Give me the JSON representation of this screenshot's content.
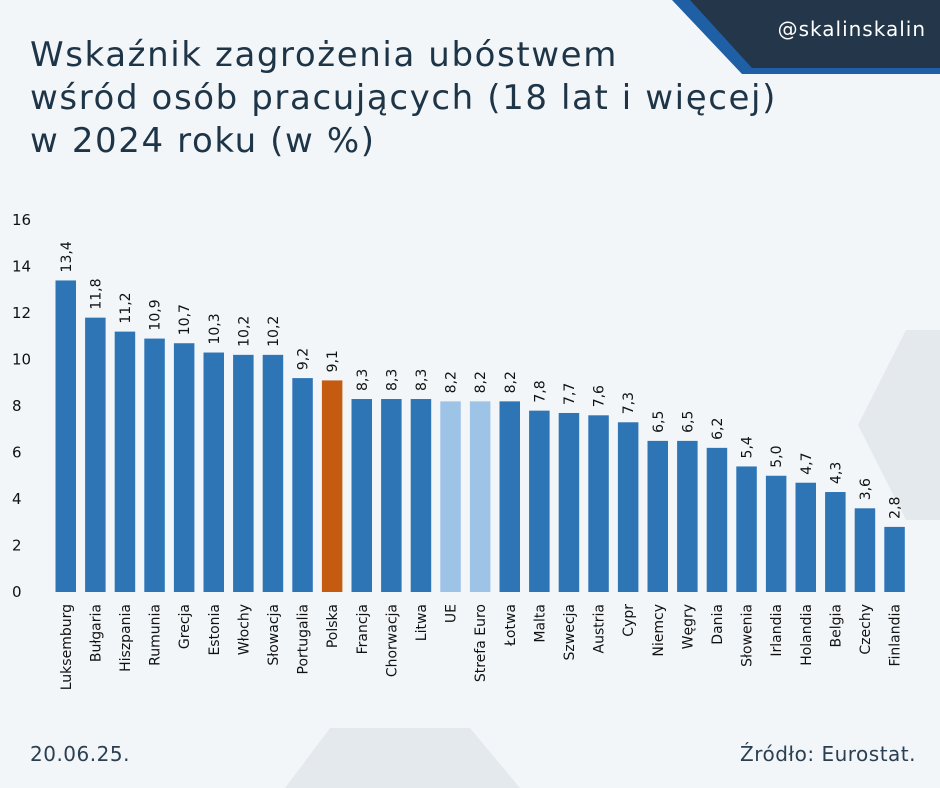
{
  "header": {
    "handle": "@skalinskalin",
    "title": "Wskaźnik zagrożenia ubóstwem\nwśród osób pracujących (18 lat i więcej)\nw 2024 roku (w %)"
  },
  "footer": {
    "date": "20.06.25.",
    "source": "Źródło: Eurostat."
  },
  "colors": {
    "default": "#2e75b6",
    "poland": "#c55a11",
    "eu": "#9dc3e6",
    "background": "#f3f6f9",
    "banner_dark": "#24364a",
    "banner_accent": "#1f5fa5"
  },
  "chart_data": {
    "type": "bar",
    "title": "Wskaźnik zagrożenia ubóstwem wśród osób pracujących (18 lat i więcej) w 2024 roku (w %)",
    "xlabel": "",
    "ylabel": "",
    "ylim": [
      0,
      16
    ],
    "yticks": [
      0,
      2,
      4,
      6,
      8,
      10,
      12,
      14,
      16
    ],
    "grid": false,
    "legend": "none",
    "categories": [
      "Luksemburg",
      "Bułgaria",
      "Hiszpania",
      "Rumunia",
      "Grecja",
      "Estonia",
      "Włochy",
      "Słowacja",
      "Portugalia",
      "Polska",
      "Francja",
      "Chorwacja",
      "Litwa",
      "UE",
      "Strefa Euro",
      "Łotwa",
      "Malta",
      "Szwecja",
      "Austria",
      "Cypr",
      "Niemcy",
      "Węgry",
      "Dania",
      "Słowenia",
      "Irlandia",
      "Holandia",
      "Belgia",
      "Czechy",
      "Finlandia"
    ],
    "values": [
      13.4,
      11.8,
      11.2,
      10.9,
      10.7,
      10.3,
      10.2,
      10.2,
      9.2,
      9.1,
      8.3,
      8.3,
      8.3,
      8.2,
      8.2,
      8.2,
      7.8,
      7.7,
      7.6,
      7.3,
      6.5,
      6.5,
      6.2,
      5.4,
      5.0,
      4.7,
      4.3,
      3.6,
      2.8
    ],
    "value_labels": [
      "13,4",
      "11,8",
      "11,2",
      "10,9",
      "10,7",
      "10,3",
      "10,2",
      "10,2",
      "9,2",
      "9,1",
      "8,3",
      "8,3",
      "8,3",
      "8,2",
      "8,2",
      "8,2",
      "7,8",
      "7,7",
      "7,6",
      "7,3",
      "6,5",
      "6,5",
      "6,2",
      "5,4",
      "5,0",
      "4,7",
      "4,3",
      "3,6",
      "2,8"
    ],
    "highlight": {
      "Polska": "poland",
      "UE": "eu",
      "Strefa Euro": "eu"
    }
  }
}
